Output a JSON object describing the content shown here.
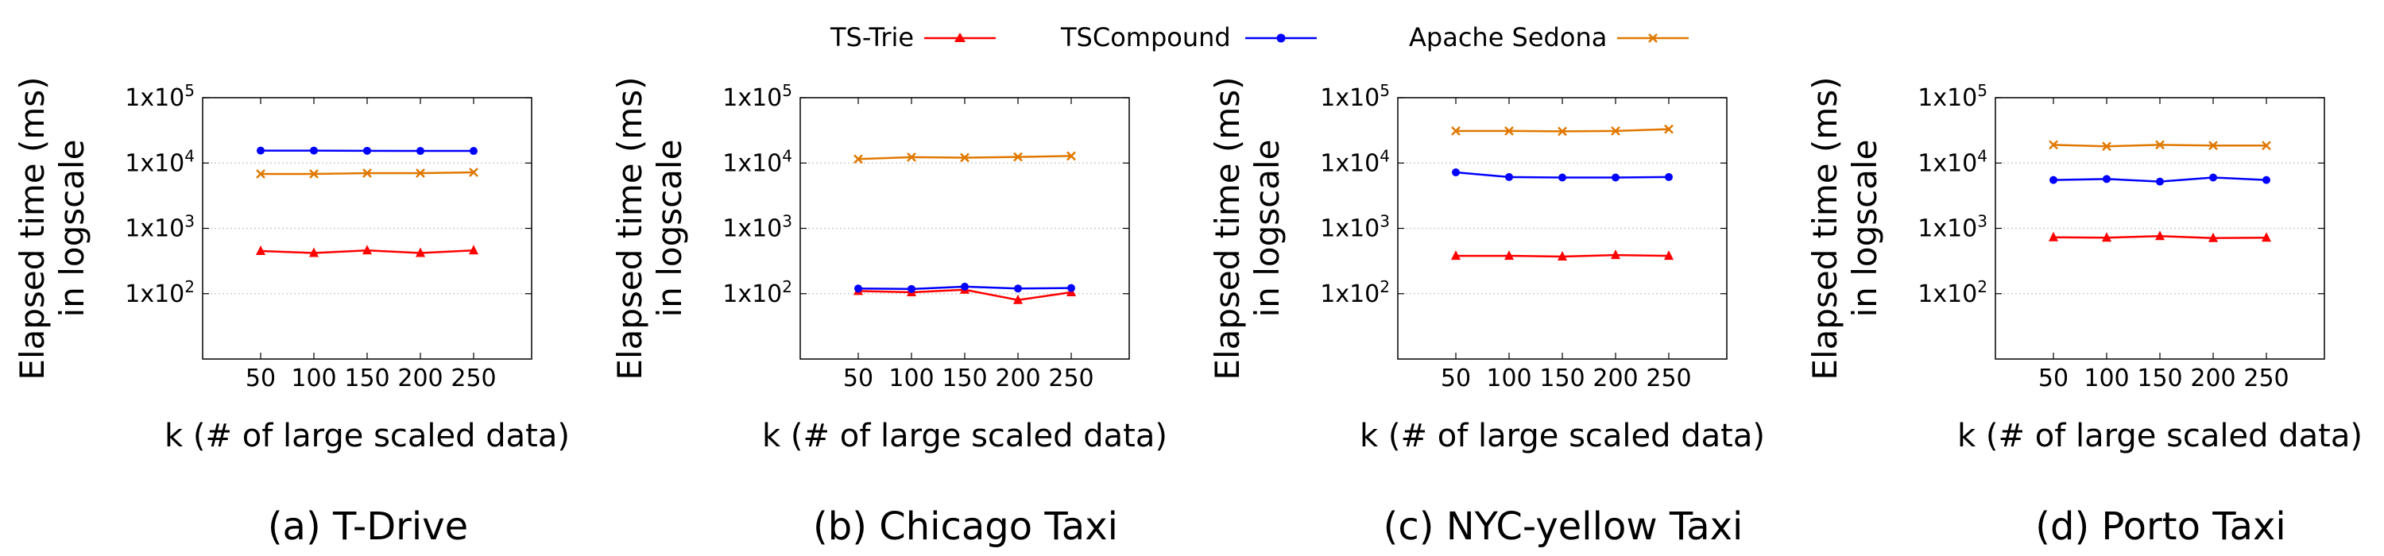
{
  "legend": [
    {
      "name": "TS-Trie",
      "color": "#ff0000",
      "marker": "triangle"
    },
    {
      "name": "TSCompound",
      "color": "#0000ff",
      "marker": "circle"
    },
    {
      "name": "Apache Sedona",
      "color": "#e07800",
      "marker": "x"
    }
  ],
  "chart_data": [
    {
      "type": "line",
      "caption": "(a) T-Drive",
      "xlabel": "k (# of large scaled data)",
      "ylabel": [
        "Elapsed time (ms)",
        "in logscale"
      ],
      "x": [
        50,
        100,
        150,
        200,
        250
      ],
      "x_ticks": [
        "50",
        "100",
        "150",
        "200",
        "250"
      ],
      "y_scale": "log",
      "ylim": [
        10,
        100000
      ],
      "y_ticks": [
        {
          "value": 100,
          "base": "1x10",
          "exp": "2"
        },
        {
          "value": 1000,
          "base": "1x10",
          "exp": "3"
        },
        {
          "value": 10000,
          "base": "1x10",
          "exp": "4"
        },
        {
          "value": 100000,
          "base": "1x10",
          "exp": "5"
        }
      ],
      "grid": "horizontal dotted",
      "series": [
        {
          "name": "TS-Trie",
          "values": [
            450,
            420,
            460,
            420,
            460
          ]
        },
        {
          "name": "TSCompound",
          "values": [
            15500,
            15500,
            15400,
            15300,
            15300
          ]
        },
        {
          "name": "Apache Sedona",
          "values": [
            6800,
            6800,
            7000,
            7000,
            7200
          ]
        }
      ]
    },
    {
      "type": "line",
      "caption": "(b) Chicago Taxi",
      "xlabel": "k (# of large scaled data)",
      "ylabel": [
        "Elapsed time (ms)",
        "in logscale"
      ],
      "x": [
        50,
        100,
        150,
        200,
        250
      ],
      "x_ticks": [
        "50",
        "100",
        "150",
        "200",
        "250"
      ],
      "y_scale": "log",
      "ylim": [
        10,
        100000
      ],
      "y_ticks": [
        {
          "value": 100,
          "base": "1x10",
          "exp": "2"
        },
        {
          "value": 1000,
          "base": "1x10",
          "exp": "3"
        },
        {
          "value": 10000,
          "base": "1x10",
          "exp": "4"
        },
        {
          "value": 100000,
          "base": "1x10",
          "exp": "5"
        }
      ],
      "grid": "horizontal dotted",
      "series": [
        {
          "name": "TS-Trie",
          "values": [
            110,
            105,
            115,
            80,
            105
          ]
        },
        {
          "name": "TSCompound",
          "values": [
            120,
            118,
            128,
            120,
            122
          ]
        },
        {
          "name": "Apache Sedona",
          "values": [
            11500,
            12300,
            12100,
            12400,
            12800
          ]
        }
      ]
    },
    {
      "type": "line",
      "caption": "(c) NYC-yellow Taxi",
      "xlabel": "k (# of large scaled data)",
      "ylabel": [
        "Elapsed time (ms)",
        "in logscale"
      ],
      "x": [
        50,
        100,
        150,
        200,
        250
      ],
      "x_ticks": [
        "50",
        "100",
        "150",
        "200",
        "250"
      ],
      "y_scale": "log",
      "ylim": [
        10,
        100000
      ],
      "y_ticks": [
        {
          "value": 100,
          "base": "1x10",
          "exp": "2"
        },
        {
          "value": 1000,
          "base": "1x10",
          "exp": "3"
        },
        {
          "value": 10000,
          "base": "1x10",
          "exp": "4"
        },
        {
          "value": 100000,
          "base": "1x10",
          "exp": "5"
        }
      ],
      "grid": "horizontal dotted",
      "series": [
        {
          "name": "TS-Trie",
          "values": [
            380,
            380,
            370,
            390,
            380
          ]
        },
        {
          "name": "TSCompound",
          "values": [
            7200,
            6100,
            6000,
            6000,
            6100
          ]
        },
        {
          "name": "Apache Sedona",
          "values": [
            31000,
            31000,
            30500,
            31000,
            33000
          ]
        }
      ]
    },
    {
      "type": "line",
      "caption": "(d) Porto Taxi",
      "xlabel": "k (# of large scaled data)",
      "ylabel": [
        "Elapsed time (ms)",
        "in logscale"
      ],
      "x": [
        50,
        100,
        150,
        200,
        250
      ],
      "x_ticks": [
        "50",
        "100",
        "150",
        "200",
        "250"
      ],
      "y_scale": "log",
      "ylim": [
        10,
        100000
      ],
      "y_ticks": [
        {
          "value": 100,
          "base": "1x10",
          "exp": "2"
        },
        {
          "value": 1000,
          "base": "1x10",
          "exp": "3"
        },
        {
          "value": 10000,
          "base": "1x10",
          "exp": "4"
        },
        {
          "value": 100000,
          "base": "1x10",
          "exp": "5"
        }
      ],
      "grid": "horizontal dotted",
      "series": [
        {
          "name": "TS-Trie",
          "values": [
            730,
            720,
            760,
            710,
            720
          ]
        },
        {
          "name": "TSCompound",
          "values": [
            5500,
            5700,
            5200,
            6000,
            5500
          ]
        },
        {
          "name": "Apache Sedona",
          "values": [
            19000,
            18000,
            19000,
            18500,
            18500
          ]
        }
      ]
    }
  ]
}
